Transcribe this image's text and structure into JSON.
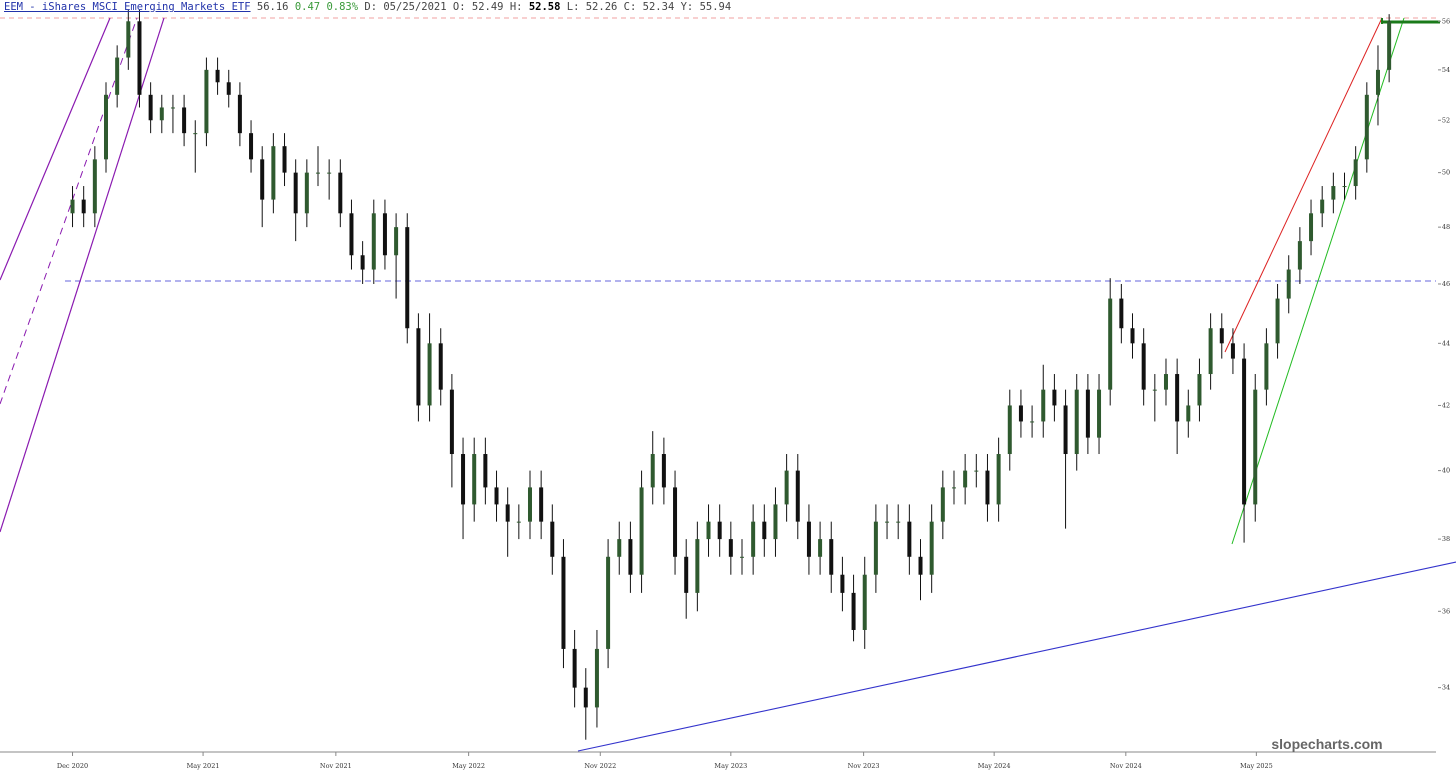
{
  "chart_data": {
    "type": "candlestick",
    "title": "EEM - iShares MSCI Emerging Markets ETF",
    "header": {
      "price": "56.16",
      "change": "0.47",
      "change_pct": "0.83%",
      "fields": [
        [
          "D:",
          "05/25/2021"
        ],
        [
          "O:",
          "52.49"
        ],
        [
          "H:",
          "52.58"
        ],
        [
          "L:",
          "52.26"
        ],
        [
          "C:",
          "52.34"
        ],
        [
          "Y:",
          "55.94"
        ]
      ]
    },
    "watermark": "slopecharts.com",
    "log_scale": true,
    "grid": false,
    "up_color": "#2f5a2f",
    "down_color": "#111111",
    "ylim": [
      32.4,
      56.9
    ],
    "yticks": [
      34,
      36,
      38,
      40,
      42,
      44,
      46,
      48,
      50,
      52,
      54,
      56
    ],
    "xlim": [
      -6.5,
      122.2
    ],
    "xticks": [
      {
        "value": 0,
        "label": "Dec 2020"
      },
      {
        "value": 11.7,
        "label": "May 2021"
      },
      {
        "value": 23.6,
        "label": "Nov 2021"
      },
      {
        "value": 35.5,
        "label": "May 2022"
      },
      {
        "value": 47.3,
        "label": "Nov 2022"
      },
      {
        "value": 59,
        "label": "May 2023"
      },
      {
        "value": 70.9,
        "label": "Nov 2023"
      },
      {
        "value": 82.6,
        "label": "May 2024"
      },
      {
        "value": 94.4,
        "label": "Nov 2024"
      },
      {
        "value": 106.1,
        "label": "May 2025"
      }
    ],
    "ohlc": [
      [
        48.5,
        49.5,
        48,
        49
      ],
      [
        49,
        49.5,
        48,
        48.5
      ],
      [
        48.5,
        51,
        48,
        50.5
      ],
      [
        50.5,
        53.5,
        50,
        53
      ],
      [
        53,
        55,
        52.5,
        54.5
      ],
      [
        54.5,
        56.5,
        54,
        56
      ],
      [
        56,
        56.5,
        52.5,
        53
      ],
      [
        53,
        53.5,
        51.5,
        52
      ],
      [
        52,
        53,
        51.5,
        52.5
      ],
      [
        52.5,
        53,
        51.5,
        52.5
      ],
      [
        52.5,
        53,
        51,
        51.5
      ],
      [
        51.5,
        52,
        50,
        51.5
      ],
      [
        51.5,
        54.5,
        51,
        54
      ],
      [
        54,
        54.5,
        53,
        53.5
      ],
      [
        53.5,
        54,
        52.5,
        53
      ],
      [
        53,
        53.5,
        51,
        51.5
      ],
      [
        51.5,
        52,
        50,
        50.5
      ],
      [
        50.5,
        51,
        48,
        49
      ],
      [
        49,
        51.5,
        48.5,
        51
      ],
      [
        51,
        51.5,
        49.5,
        50
      ],
      [
        50,
        50.5,
        47.5,
        48.5
      ],
      [
        48.5,
        50.5,
        48,
        50
      ],
      [
        50,
        51,
        49.5,
        50
      ],
      [
        50,
        50.5,
        49,
        50
      ],
      [
        50,
        50.5,
        48,
        48.5
      ],
      [
        48.5,
        49,
        46.5,
        47
      ],
      [
        47,
        47.5,
        46,
        46.5
      ],
      [
        46.5,
        49,
        46,
        48.5
      ],
      [
        48.5,
        49,
        46.5,
        47
      ],
      [
        47,
        48.5,
        45.5,
        48
      ],
      [
        48,
        48.5,
        44,
        44.5
      ],
      [
        44.5,
        45,
        41.5,
        42
      ],
      [
        42,
        45,
        41.5,
        44
      ],
      [
        44,
        44.5,
        42,
        42.5
      ],
      [
        42.5,
        43,
        39.5,
        40.5
      ],
      [
        40.5,
        41,
        38,
        39
      ],
      [
        39,
        41,
        38.5,
        40.5
      ],
      [
        40.5,
        41,
        39,
        39.5
      ],
      [
        39.5,
        40,
        38.5,
        39
      ],
      [
        39,
        39.5,
        37.5,
        38.5
      ],
      [
        38.5,
        39,
        38,
        38.5
      ],
      [
        38.5,
        40,
        38,
        39.5
      ],
      [
        39.5,
        40,
        38,
        38.5
      ],
      [
        38.5,
        39,
        37,
        37.5
      ],
      [
        37.5,
        38,
        34.5,
        35
      ],
      [
        35,
        35.5,
        33.5,
        34
      ],
      [
        34,
        34.5,
        32.7,
        33.5
      ],
      [
        33.5,
        35.5,
        33,
        35
      ],
      [
        35,
        38,
        34.5,
        37.5
      ],
      [
        37.5,
        38.5,
        37,
        38
      ],
      [
        38,
        38.5,
        36.5,
        37
      ],
      [
        37,
        40,
        36.5,
        39.5
      ],
      [
        39.5,
        41.2,
        39,
        40.5
      ],
      [
        40.5,
        41,
        39,
        39.5
      ],
      [
        39.5,
        40,
        37,
        37.5
      ],
      [
        37.5,
        38,
        35.8,
        36.5
      ],
      [
        36.5,
        38.5,
        36,
        38
      ],
      [
        38,
        39,
        37.5,
        38.5
      ],
      [
        38.5,
        39,
        37.5,
        38
      ],
      [
        38,
        38.5,
        37,
        37.5
      ],
      [
        37.5,
        38,
        37,
        37.5
      ],
      [
        37.5,
        39,
        37,
        38.5
      ],
      [
        38.5,
        39,
        37.5,
        38
      ],
      [
        38,
        39.5,
        37.5,
        39
      ],
      [
        39,
        40.5,
        38.5,
        40
      ],
      [
        40,
        40.5,
        38,
        38.5
      ],
      [
        38.5,
        39,
        37,
        37.5
      ],
      [
        37.5,
        38.5,
        37,
        38
      ],
      [
        38,
        38.5,
        36.5,
        37
      ],
      [
        37,
        37.5,
        36,
        36.5
      ],
      [
        36.5,
        37,
        35.2,
        35.5
      ],
      [
        35.5,
        37.5,
        35,
        37
      ],
      [
        37,
        39,
        36.5,
        38.5
      ],
      [
        38.5,
        39,
        38,
        38.5
      ],
      [
        38.5,
        39,
        38,
        38.5
      ],
      [
        38.5,
        39,
        37,
        37.5
      ],
      [
        37.5,
        38,
        36.3,
        37
      ],
      [
        37,
        39,
        36.5,
        38.5
      ],
      [
        38.5,
        40,
        38,
        39.5
      ],
      [
        39.5,
        40,
        39,
        39.5
      ],
      [
        39.5,
        40.5,
        39,
        40
      ],
      [
        40,
        40.5,
        39.5,
        40
      ],
      [
        40,
        40.5,
        38.5,
        39
      ],
      [
        39,
        41,
        38.5,
        40.5
      ],
      [
        40.5,
        42.5,
        40,
        42
      ],
      [
        42,
        42.5,
        41,
        41.5
      ],
      [
        41.5,
        42,
        41,
        41.5
      ],
      [
        41.5,
        43.3,
        41,
        42.5
      ],
      [
        42.5,
        43,
        41.5,
        42
      ],
      [
        42,
        42.5,
        38.3,
        40.5
      ],
      [
        40.5,
        43,
        40,
        42.5
      ],
      [
        42.5,
        43,
        40.5,
        41
      ],
      [
        41,
        43,
        40.5,
        42.5
      ],
      [
        42.5,
        46.2,
        42,
        45.5
      ],
      [
        45.5,
        46,
        44,
        44.5
      ],
      [
        44.5,
        45,
        43.5,
        44
      ],
      [
        44,
        44.5,
        42,
        42.5
      ],
      [
        42.5,
        43,
        41.5,
        42.5
      ],
      [
        42.5,
        43.5,
        42,
        43
      ],
      [
        43,
        43.5,
        40.5,
        41.5
      ],
      [
        41.5,
        42.5,
        41,
        42
      ],
      [
        42,
        43.5,
        41.5,
        43
      ],
      [
        43,
        45,
        42.5,
        44.5
      ],
      [
        44.5,
        45,
        43.5,
        44
      ],
      [
        44,
        44.5,
        43,
        43.5
      ],
      [
        43.5,
        44,
        37.9,
        39
      ],
      [
        39,
        43,
        38.5,
        42.5
      ],
      [
        42.5,
        44.5,
        42,
        44
      ],
      [
        44,
        46,
        43.5,
        45.5
      ],
      [
        45.5,
        47,
        45,
        46.5
      ],
      [
        46.5,
        48,
        46,
        47.5
      ],
      [
        47.5,
        49,
        47,
        48.5
      ],
      [
        48.5,
        49.5,
        48,
        49
      ],
      [
        49,
        50,
        48.5,
        49.5
      ],
      [
        49.5,
        50,
        49,
        49.5
      ],
      [
        49.5,
        51,
        49,
        50.5
      ],
      [
        50.5,
        53.5,
        50,
        53
      ],
      [
        53,
        55,
        51.8,
        54
      ],
      [
        54,
        56.3,
        53.5,
        56
      ]
    ]
  }
}
